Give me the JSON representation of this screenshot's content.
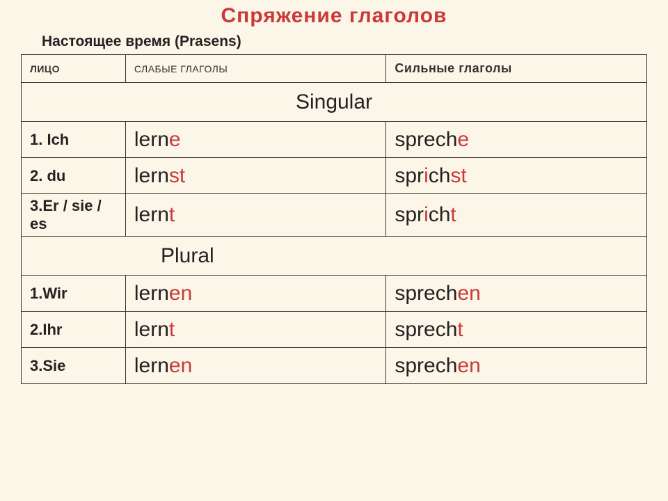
{
  "title": "Спряжение  глаголов",
  "subtitle": "Настоящее время (Prasens)",
  "colors": {
    "background": "#fcf6e8",
    "border": "#333333",
    "text": "#222222",
    "highlight": "#c93a3a"
  },
  "headers": {
    "person": "Лицо",
    "weak": "Слабые глаголы",
    "strong": "Сильные глаголы"
  },
  "sections": {
    "singular": "Singular",
    "plural": "Plural"
  },
  "rows": [
    {
      "person": "1. Ich",
      "weak": {
        "parts": [
          {
            "t": "lern",
            "c": "stem"
          },
          {
            "t": "e",
            "c": "end"
          }
        ]
      },
      "strong": {
        "parts": [
          {
            "t": "sprech",
            "c": "stem"
          },
          {
            "t": "e",
            "c": "end"
          }
        ]
      }
    },
    {
      "person": "2. du",
      "weak": {
        "parts": [
          {
            "t": "lern",
            "c": "stem"
          },
          {
            "t": "st",
            "c": "end"
          }
        ]
      },
      "strong": {
        "parts": [
          {
            "t": "spr",
            "c": "stem"
          },
          {
            "t": "i",
            "c": "vowel"
          },
          {
            "t": "ch",
            "c": "stem"
          },
          {
            "t": "st",
            "c": "end"
          }
        ]
      }
    },
    {
      "person": "3.Er / sie / es",
      "weak": {
        "parts": [
          {
            "t": "lern",
            "c": "stem"
          },
          {
            "t": "t",
            "c": "end"
          }
        ]
      },
      "strong": {
        "parts": [
          {
            "t": "spr",
            "c": "stem"
          },
          {
            "t": "i",
            "c": "vowel"
          },
          {
            "t": "ch",
            "c": "stem"
          },
          {
            "t": "t",
            "c": "end"
          }
        ]
      }
    },
    {
      "person": "1.Wir",
      "weak": {
        "parts": [
          {
            "t": "lern",
            "c": "stem"
          },
          {
            "t": "en",
            "c": "end"
          }
        ]
      },
      "strong": {
        "parts": [
          {
            "t": "sprech",
            "c": "stem"
          },
          {
            "t": "en",
            "c": "end"
          }
        ]
      }
    },
    {
      "person": "2.Ihr",
      "weak": {
        "parts": [
          {
            "t": "lern",
            "c": "stem"
          },
          {
            "t": "t",
            "c": "end"
          }
        ]
      },
      "strong": {
        "parts": [
          {
            "t": "sprech",
            "c": "stem"
          },
          {
            "t": "t",
            "c": "end"
          }
        ]
      }
    },
    {
      "person": "3.Sie",
      "weak": {
        "parts": [
          {
            "t": "lern",
            "c": "stem"
          },
          {
            "t": "en",
            "c": "end"
          }
        ]
      },
      "strong": {
        "parts": [
          {
            "t": "sprech",
            "c": "stem"
          },
          {
            "t": "en",
            "c": "end"
          }
        ]
      }
    }
  ]
}
